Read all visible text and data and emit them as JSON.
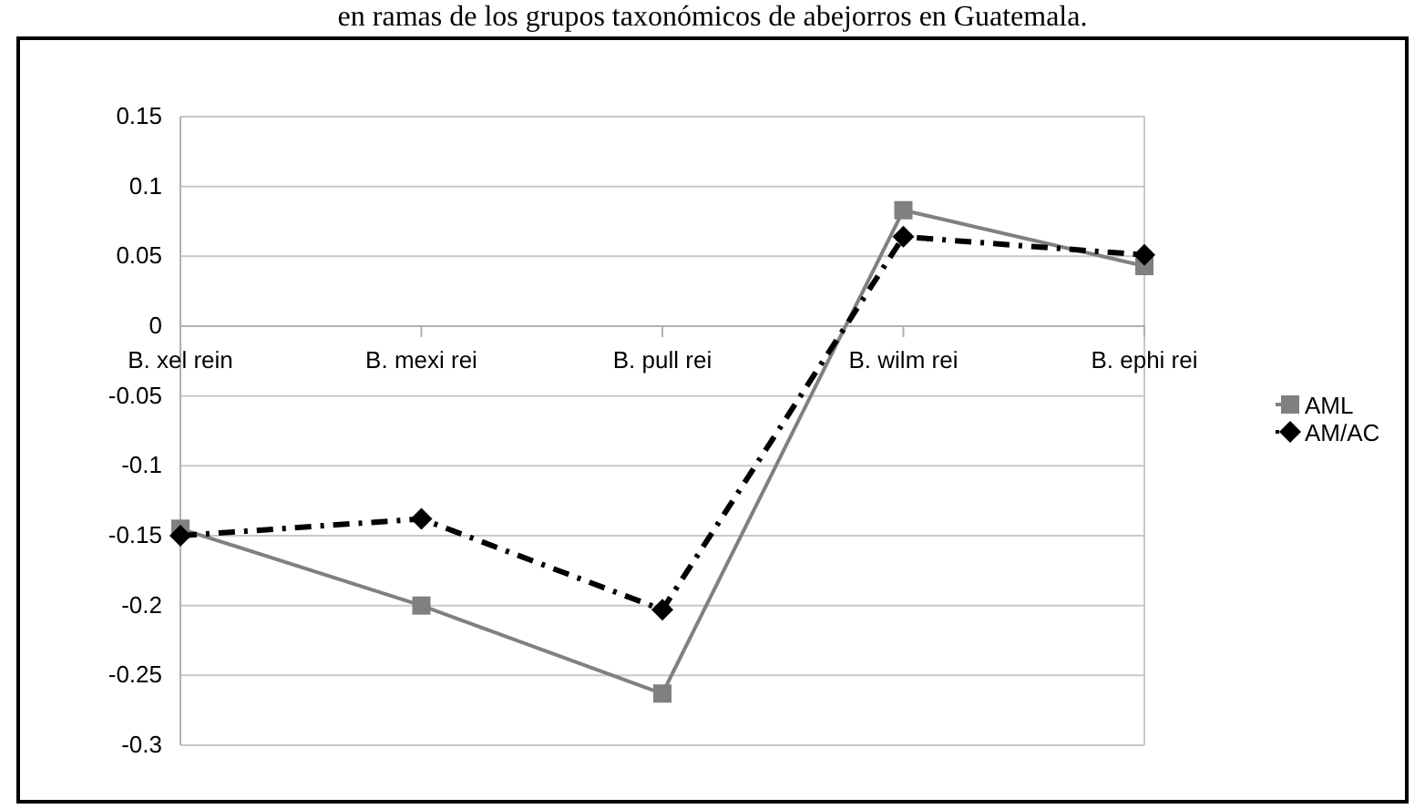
{
  "chart_data": {
    "type": "line",
    "title": "en ramas de los grupos taxonómicos de abejorros en Guatemala.",
    "categories": [
      "B. xel rein",
      "B. mexi rei",
      "B. pull rei",
      "B. wilm rei",
      "B. ephi rei"
    ],
    "series": [
      {
        "name": "AML",
        "color": "#808080",
        "values": [
          -0.145,
          -0.2,
          -0.263,
          0.083,
          0.043
        ],
        "marker": "square",
        "line_style": "solid"
      },
      {
        "name": "AM/AC",
        "color": "#000000",
        "values": [
          -0.15,
          -0.138,
          -0.203,
          0.064,
          0.051
        ],
        "marker": "diamond",
        "line_style": "dashed"
      }
    ],
    "ylim": [
      -0.3,
      0.15
    ],
    "yticks": [
      -0.3,
      -0.25,
      -0.2,
      -0.15,
      -0.1,
      -0.05,
      0,
      0.05,
      0.1,
      0.15
    ],
    "grid": "y",
    "legend": "right"
  }
}
